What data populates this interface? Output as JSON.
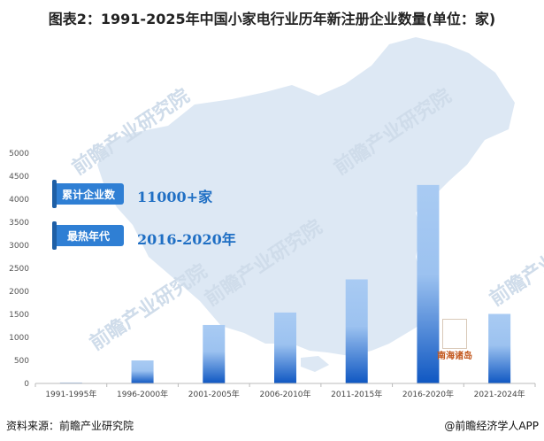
{
  "title": "图表2：1991-2025年中国小家电行业历年新注册企业数量(单位：家)",
  "source": "资料来源：前瞻产业研究院",
  "brand": "@前瞻经济学人APP",
  "watermark": "前瞻产业研究院",
  "map_label": "南海诸岛",
  "callouts": [
    {
      "label": "累计企业数",
      "value": "11000+家"
    },
    {
      "label": "最热年代",
      "value": "2016-2020年"
    }
  ],
  "colors": {
    "bar_top": "#a9cbf3",
    "bar_bottom": "#0f57c2",
    "map": "#dde8f4",
    "callout_bg": "#2f7fd4",
    "callout_value": "#1f6fc4"
  },
  "chart_data": {
    "type": "bar",
    "categories": [
      "1991-1995年",
      "1996-2000年",
      "2001-2005年",
      "2006-2010年",
      "2011-2015年",
      "2016-2020年",
      "2021-2024年"
    ],
    "values": [
      20,
      500,
      1270,
      1540,
      2260,
      4310,
      1510
    ],
    "ylim": [
      0,
      5000
    ],
    "yticks": [
      0,
      500,
      1000,
      1500,
      2000,
      2500,
      3000,
      3500,
      4000,
      4500,
      5000
    ],
    "grid": false,
    "legend": "none"
  }
}
